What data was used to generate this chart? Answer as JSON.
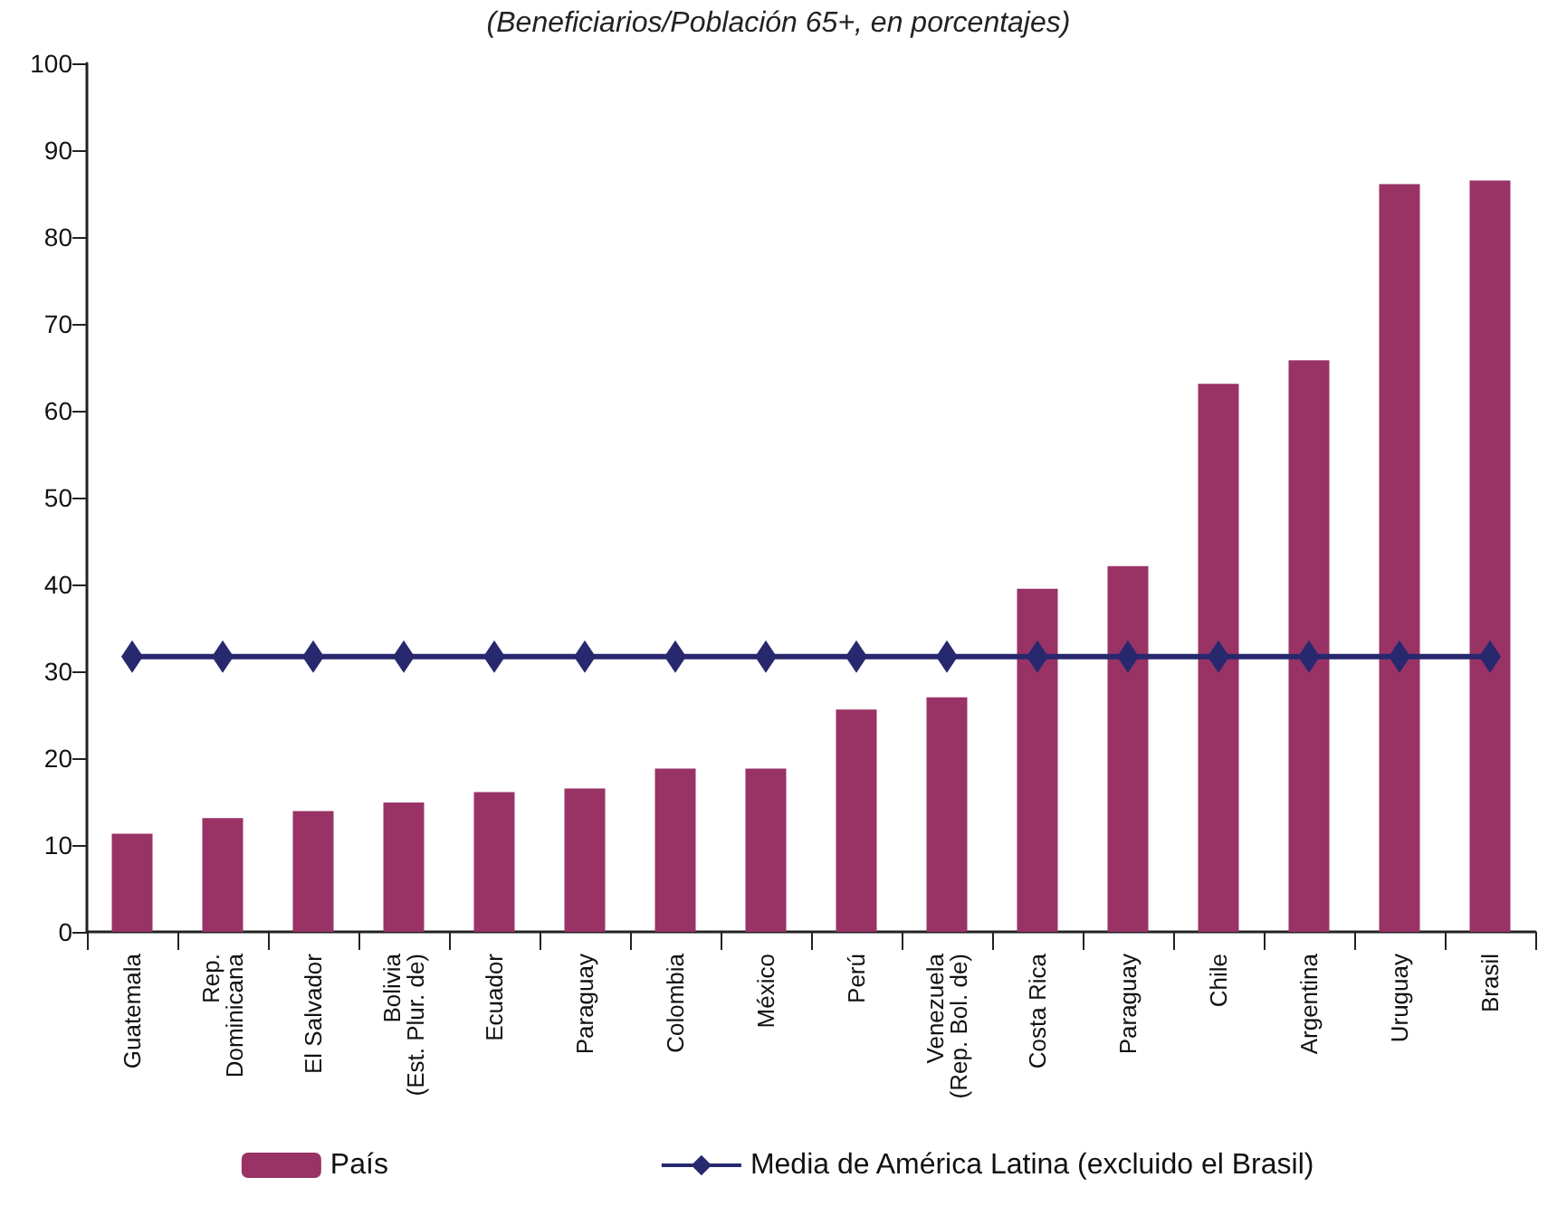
{
  "chart_data": {
    "type": "bar",
    "subtitle": "(Beneficiarios/Población 65+, en porcentajes)",
    "categories": [
      "Guatemala",
      "Rep.\nDominicana",
      "El Salvador",
      "Bolivia\n(Est. Plur. de)",
      "Ecuador",
      "Paraguay",
      "Colombia",
      "México",
      "Perú",
      "Venezuela\n(Rep. Bol. de)",
      "Costa Rica",
      "Paraguay",
      "Chile",
      "Argentina",
      "Uruguay",
      "Brasil"
    ],
    "series": [
      {
        "name": "País",
        "color": "#993366",
        "values": [
          11.3,
          13.1,
          13.9,
          14.9,
          16.1,
          16.5,
          18.8,
          18.8,
          25.6,
          27.0,
          39.5,
          42.1,
          63.1,
          65.8,
          86.1,
          86.5
        ]
      },
      {
        "name": "Media de América Latina (excluido el Brasil)",
        "type": "line",
        "color": "#27286e",
        "marker": "diamond",
        "values": [
          31.7,
          31.7,
          31.7,
          31.7,
          31.7,
          31.7,
          31.7,
          31.7,
          31.7,
          31.7,
          31.7,
          31.7,
          31.7,
          31.7,
          31.7,
          31.7
        ]
      }
    ],
    "ylim": [
      0,
      100
    ],
    "yticks": [
      0,
      10,
      20,
      30,
      40,
      50,
      60,
      70,
      80,
      90,
      100
    ],
    "grid": false,
    "legend": "bottom"
  }
}
